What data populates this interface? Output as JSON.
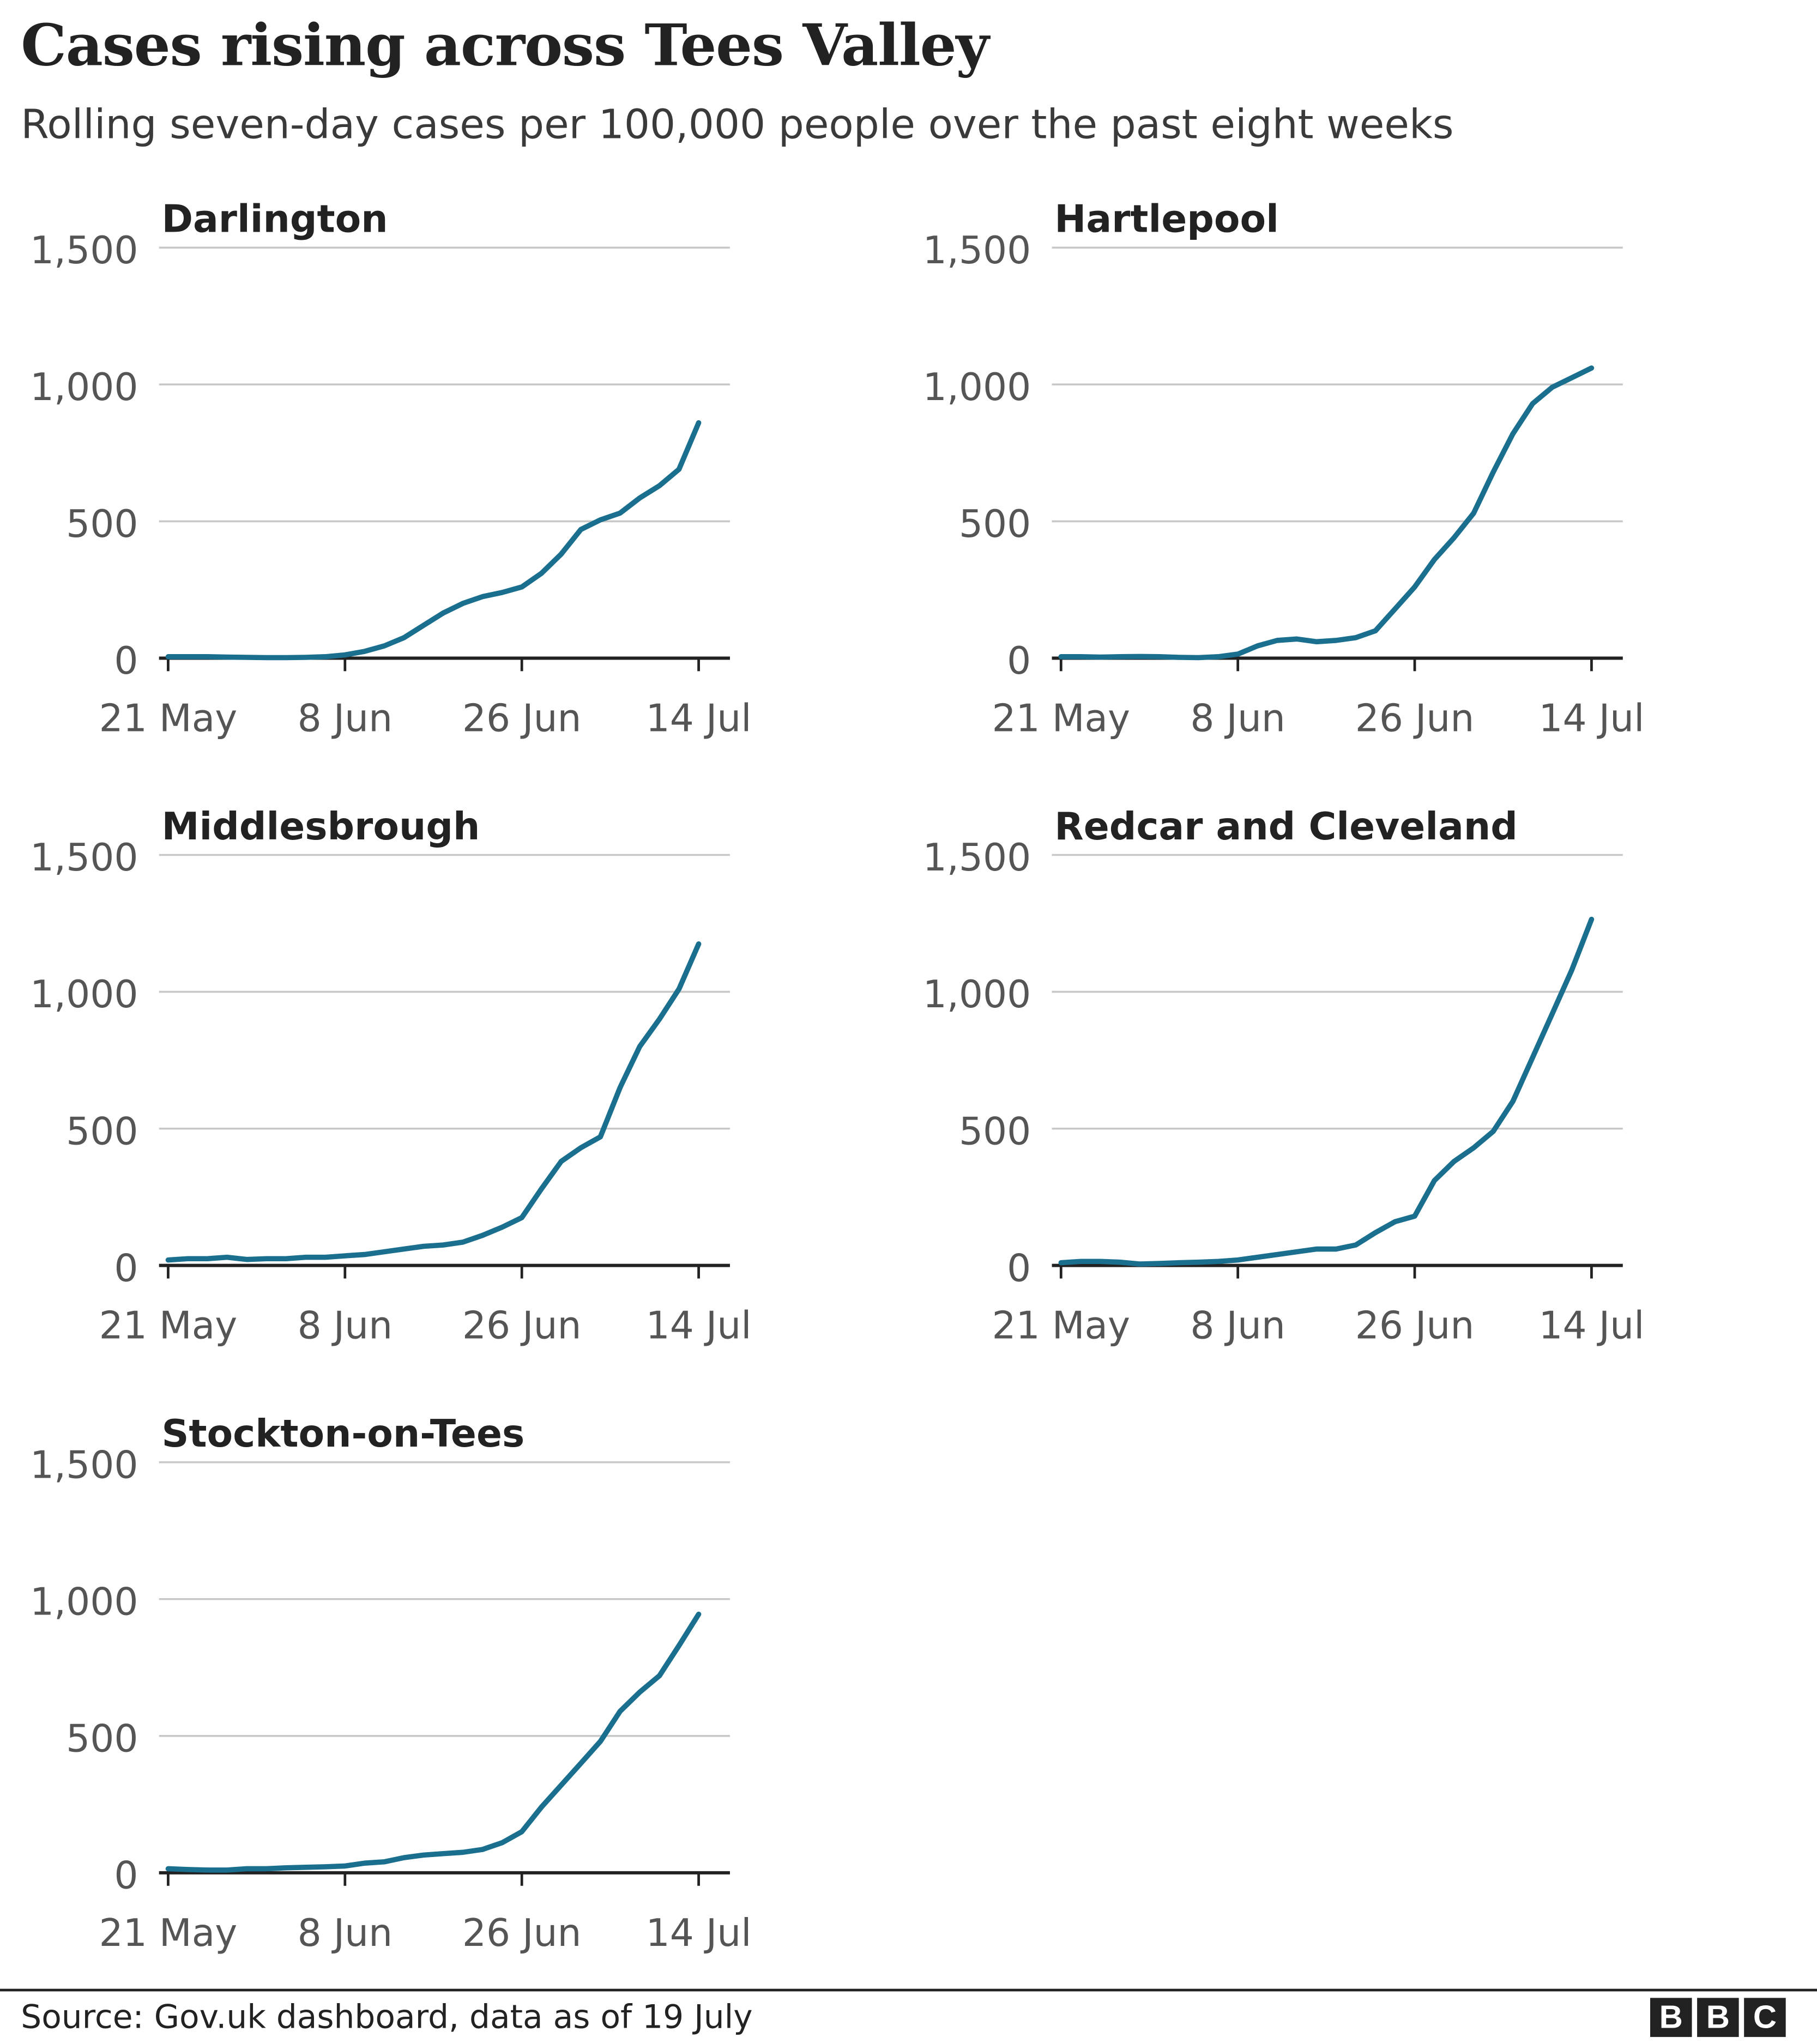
{
  "title": "Cases rising across Tees Valley",
  "subtitle": "Rolling seven-day cases per 100,000 people over the past eight weeks",
  "source": "Source: Gov.uk dashboard, data as of 19 July",
  "logo": [
    "B",
    "B",
    "C"
  ],
  "colors": {
    "line": "#1a6f8f",
    "grid": "#c8c8c8",
    "axis": "#222222",
    "tick_text": "#555555"
  },
  "chart_data": {
    "type": "line",
    "layout": "small-multiples",
    "ylim": [
      0,
      1500
    ],
    "yticks": [
      0,
      500,
      1000,
      1500
    ],
    "ytick_labels": [
      "0",
      "500",
      "1,000",
      "1,500"
    ],
    "xtick_labels": [
      "21 May",
      "8 Jun",
      "26 Jun",
      "14 Jul"
    ],
    "grid": true,
    "x": [
      "21 May",
      "23 May",
      "25 May",
      "27 May",
      "29 May",
      "31 May",
      "2 Jun",
      "4 Jun",
      "6 Jun",
      "8 Jun",
      "10 Jun",
      "12 Jun",
      "14 Jun",
      "16 Jun",
      "18 Jun",
      "20 Jun",
      "22 Jun",
      "24 Jun",
      "26 Jun",
      "28 Jun",
      "30 Jun",
      "2 Jul",
      "4 Jul",
      "6 Jul",
      "8 Jul",
      "10 Jul",
      "12 Jul",
      "14 Jul"
    ],
    "panels": [
      {
        "name": "Darlington",
        "values": [
          5,
          5,
          5,
          4,
          3,
          2,
          2,
          3,
          5,
          12,
          25,
          45,
          75,
          120,
          165,
          200,
          225,
          240,
          260,
          310,
          380,
          470,
          505,
          530,
          585,
          630,
          690,
          860
        ]
      },
      {
        "name": "Hartlepool",
        "values": [
          5,
          5,
          4,
          5,
          6,
          5,
          3,
          2,
          5,
          15,
          45,
          65,
          70,
          60,
          65,
          75,
          100,
          180,
          260,
          360,
          440,
          530,
          680,
          820,
          930,
          990,
          1025,
          1060
        ]
      },
      {
        "name": "Middlesbrough",
        "values": [
          20,
          25,
          25,
          30,
          22,
          25,
          25,
          30,
          30,
          35,
          40,
          50,
          60,
          70,
          75,
          85,
          110,
          140,
          175,
          280,
          380,
          430,
          470,
          650,
          800,
          900,
          1010,
          1175
        ]
      },
      {
        "name": "Redcar and Cleveland",
        "values": [
          10,
          15,
          15,
          12,
          5,
          7,
          10,
          12,
          15,
          20,
          30,
          40,
          50,
          60,
          60,
          75,
          120,
          160,
          180,
          310,
          380,
          430,
          490,
          600,
          760,
          920,
          1080,
          1265
        ]
      },
      {
        "name": "Stockton-on-Tees",
        "values": [
          15,
          12,
          10,
          10,
          15,
          15,
          18,
          20,
          22,
          25,
          35,
          40,
          55,
          65,
          70,
          75,
          85,
          110,
          150,
          240,
          320,
          400,
          480,
          590,
          660,
          720,
          830,
          945
        ]
      }
    ]
  }
}
